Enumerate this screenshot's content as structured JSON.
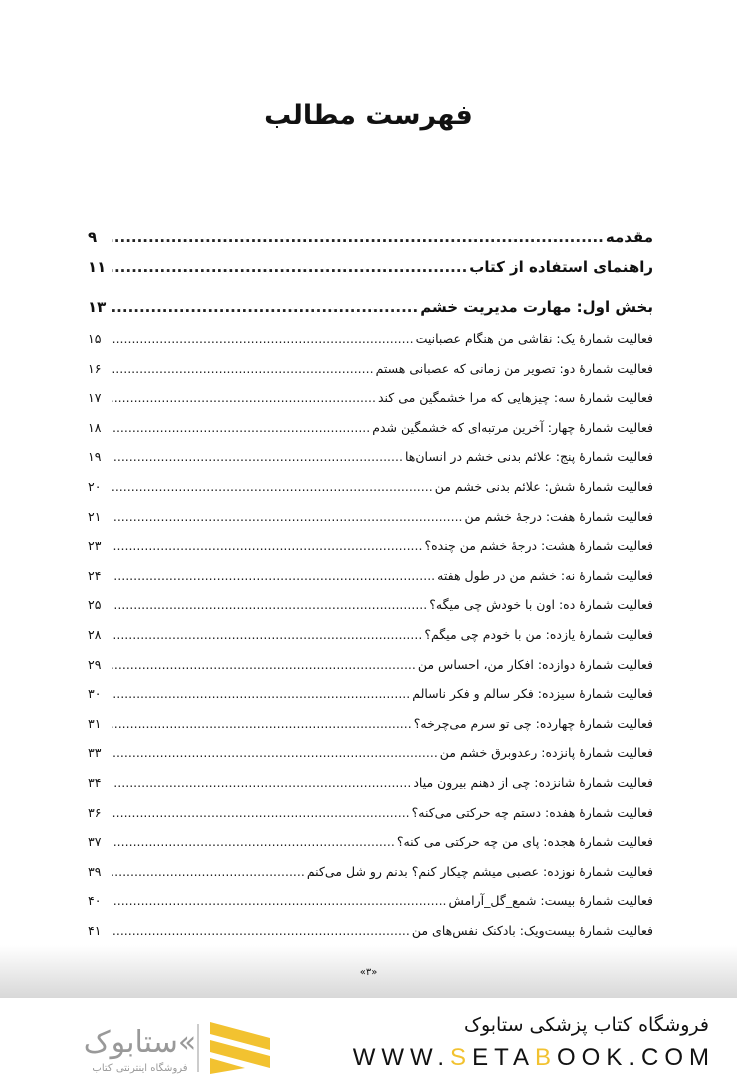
{
  "title": "فهرست مطالب",
  "entries": [
    {
      "text": "مقدمه",
      "page": "۹",
      "level": "main"
    },
    {
      "text": "راهنمای استفاده از کتاب",
      "page": "۱۱",
      "level": "main"
    },
    {
      "text": "بخش اول: مهارت مدیریت خشم",
      "page": "۱۳",
      "level": "main"
    },
    {
      "text": "فعالیت شمارهٔ یک: نقاشی من هنگام عصبانیت",
      "page": "۱۵",
      "level": "sub"
    },
    {
      "text": "فعالیت شمارهٔ دو: تصویر من زمانی که عصبانی هستم",
      "page": "۱۶",
      "level": "sub"
    },
    {
      "text": "فعالیت شمارهٔ سه: چیزهایی که مرا خشمگین می کند",
      "page": "۱۷",
      "level": "sub"
    },
    {
      "text": "فعالیت شمارهٔ چهار: آخرین مرتبه‌ای که خشمگین شدم",
      "page": "۱۸",
      "level": "sub"
    },
    {
      "text": "فعالیت شمارهٔ پنج: علائم بدنی خشم در انسان‌ها",
      "page": "۱۹",
      "level": "sub"
    },
    {
      "text": "فعالیت شمارهٔ شش: علائم بدنی خشم من",
      "page": "۲۰",
      "level": "sub"
    },
    {
      "text": "فعالیت شمارهٔ هفت: درجهٔ خشم من",
      "page": "۲۱",
      "level": "sub"
    },
    {
      "text": "فعالیت شمارهٔ هشت: درجهٔ خشم من چنده؟",
      "page": "۲۳",
      "level": "sub"
    },
    {
      "text": "فعالیت شمارهٔ نه: خشم من در طول هفته",
      "page": "۲۴",
      "level": "sub"
    },
    {
      "text": "فعالیت شمارهٔ ده: اون با خودش چی میگه؟",
      "page": "۲۵",
      "level": "sub"
    },
    {
      "text": "فعالیت شمارهٔ یازده: من با خودم چی میگم؟",
      "page": "۲۸",
      "level": "sub"
    },
    {
      "text": "فعالیت شمارهٔ دوازده: افکار من، احساس من",
      "page": "۲۹",
      "level": "sub"
    },
    {
      "text": "فعالیت شمارهٔ سیزده: فکر سالم و فکر ناسالم",
      "page": "۳۰",
      "level": "sub"
    },
    {
      "text": "فعالیت شمارهٔ چهارده: چی تو سرم می‌چرخه؟",
      "page": "۳۱",
      "level": "sub"
    },
    {
      "text": "فعالیت شمارهٔ پانزده: رعدوبرق خشم من",
      "page": "۳۳",
      "level": "sub"
    },
    {
      "text": "فعالیت شمارهٔ شانزده: چی از دهنم بیرون میاد",
      "page": "۳۴",
      "level": "sub"
    },
    {
      "text": "فعالیت شمارهٔ هفده: دستم چه حرکتی می‌کنه؟",
      "page": "۳۶",
      "level": "sub"
    },
    {
      "text": "فعالیت شمارهٔ هجده: پای من چه حرکتی می کنه؟",
      "page": "۳۷",
      "level": "sub"
    },
    {
      "text": "فعالیت شمارهٔ نوزده: عصبی میشم چیکار کنم؟ بدنم رو شل می‌کنم",
      "page": "۳۹",
      "level": "sub"
    },
    {
      "text": "فعالیت شمارهٔ بیست: شمع_گل_آرامش",
      "page": "۴۰",
      "level": "sub"
    },
    {
      "text": "فعالیت شمارهٔ بیست‌ویک: بادکنک نفس‌های من",
      "page": "۴۱",
      "level": "sub"
    }
  ],
  "footer": {
    "page_number": "«۳»"
  },
  "banner": {
    "store_name": "فروشگاه کتاب پزشکی ستابوک",
    "url_parts": [
      "WWW.",
      "S",
      "ETA",
      "B",
      "OOK.COM"
    ],
    "logo_text": "ستابوک فروشگاه اینترنتی کتاب",
    "accent": "#f2c230"
  }
}
